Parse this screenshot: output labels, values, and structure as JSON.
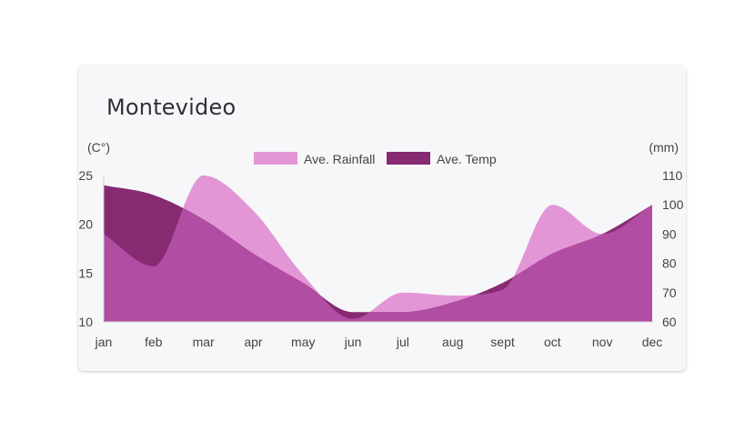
{
  "header": {
    "title": "Montevideo"
  },
  "colors": {
    "rainfall": "#e396d6",
    "temp": "#862a72",
    "overlap": "#b14da3",
    "card_bg": "#f7f7f9",
    "axis_text": "#444444"
  },
  "chart_data": {
    "type": "area",
    "title": "Montevideo",
    "categories": [
      "jan",
      "feb",
      "mar",
      "apr",
      "may",
      "jun",
      "jul",
      "aug",
      "sept",
      "oct",
      "nov",
      "dec"
    ],
    "y_left": {
      "label": "(C°)",
      "range": [
        10,
        25
      ],
      "ticks": [
        10,
        15,
        20,
        25
      ]
    },
    "y_right": {
      "label": "(mm)",
      "range": [
        60,
        110
      ],
      "ticks": [
        60,
        70,
        80,
        90,
        100,
        110
      ]
    },
    "series": [
      {
        "name": "Ave. Rainfall",
        "axis": "right",
        "color": "#e396d6",
        "values": [
          90,
          79,
          110,
          98,
          76,
          61,
          70,
          69,
          71,
          100,
          90,
          100
        ]
      },
      {
        "name": "Ave. Temp",
        "axis": "left",
        "color": "#862a72",
        "values": [
          24,
          23,
          20.5,
          17,
          14,
          11,
          11,
          12,
          14,
          17,
          19,
          22
        ]
      }
    ],
    "legend_position": "top-center",
    "grid": false
  }
}
